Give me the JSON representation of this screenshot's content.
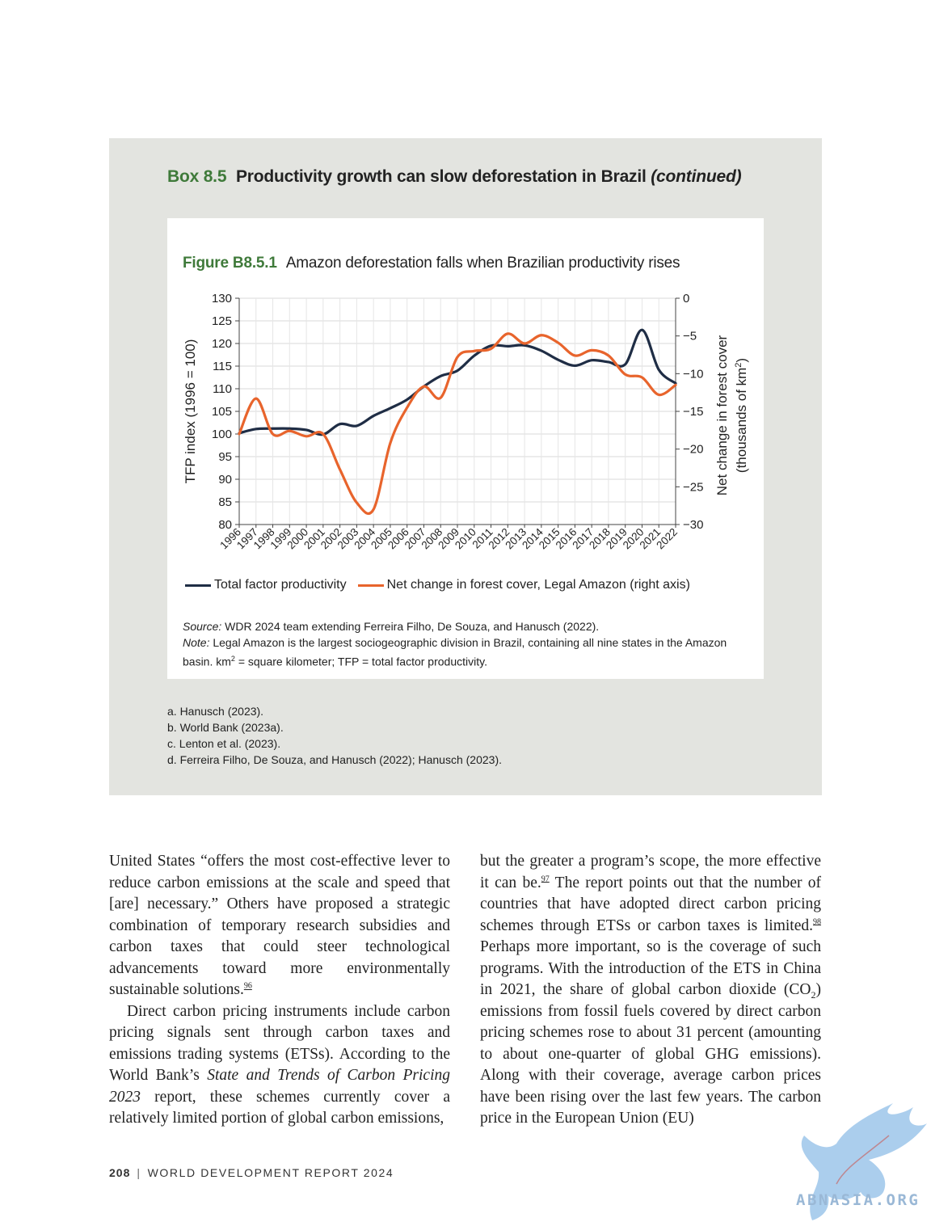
{
  "box": {
    "label": "Box 8.5",
    "title": "Productivity growth can slow deforestation in Brazil",
    "continued": "(continued)"
  },
  "figure": {
    "label": "Figure B8.5.1",
    "title": "Amazon deforestation falls when Brazilian productivity rises",
    "source_label": "Source:",
    "source_text": "WDR 2024 team extending Ferreira Filho, De Souza, and Hanusch (2022).",
    "note_label": "Note:",
    "note_text_a": "Legal Amazon is the largest sociogeographic division in Brazil, containing all nine states in the Amazon basin. km",
    "note_sup": "2",
    "note_text_b": " = square kilometer; TFP = total factor productivity."
  },
  "chart_data": {
    "type": "line",
    "x": [
      1996,
      1997,
      1998,
      1999,
      2000,
      2001,
      2002,
      2003,
      2004,
      2005,
      2006,
      2007,
      2008,
      2009,
      2010,
      2011,
      2012,
      2013,
      2014,
      2015,
      2016,
      2017,
      2018,
      2019,
      2020,
      2021,
      2022
    ],
    "xlabel": "",
    "ylabel": "TFP index (1996 = 100)",
    "ylabel_right": "Net change in forest cover",
    "ylabel_right_2": "(thousands of km",
    "ylabel_right_sup": "2",
    "ylabel_right_end": ")",
    "ylim": [
      80,
      130
    ],
    "yticks": [
      130,
      125,
      120,
      115,
      110,
      105,
      100,
      95,
      90,
      85,
      80
    ],
    "ylim_right": [
      -30,
      0
    ],
    "yticks_right": [
      "0",
      "−5",
      "−10",
      "−15",
      "−20",
      "−25",
      "−30"
    ],
    "yticks_right_values": [
      0,
      -5,
      -10,
      -15,
      -20,
      -25,
      -30
    ],
    "grid": true,
    "legend_position": "bottom",
    "series": [
      {
        "name": "Total factor productivity",
        "axis": "left",
        "color": "#1f2d45",
        "values": [
          100.2,
          101.1,
          101.2,
          101.2,
          100.9,
          99.9,
          102.2,
          101.8,
          104.0,
          105.7,
          107.6,
          110.5,
          112.8,
          114.0,
          117.3,
          119.5,
          119.4,
          119.6,
          118.4,
          116.4,
          115.1,
          116.3,
          115.9,
          115.4,
          123.0,
          114.2,
          111.2
        ]
      },
      {
        "name": "Net change in forest cover, Legal Amazon (right axis)",
        "axis": "right",
        "color": "#e8642c",
        "values": [
          -18.0,
          -13.3,
          -18.0,
          -17.6,
          -18.3,
          -18.0,
          -22.7,
          -27.1,
          -28.0,
          -19.2,
          -14.5,
          -11.7,
          -13.2,
          -7.8,
          -7.0,
          -6.7,
          -4.7,
          -6.0,
          -4.9,
          -5.9,
          -7.6,
          -6.9,
          -7.6,
          -10.1,
          -10.5,
          -12.8,
          -11.5
        ]
      }
    ]
  },
  "footnotes": [
    "a. Hanusch (2023).",
    "b. World Bank (2023a).",
    "c. Lenton et al. (2023).",
    "d. Ferreira Filho, De Souza, and Hanusch (2022); Hanusch (2023)."
  ],
  "body": {
    "left_p1": "United States “offers the most cost-effective lever to reduce carbon emissions at the scale and speed that [are] necessary.” Others have proposed a strategic combination of temporary research subsidies and carbon taxes that could steer technological advancements toward more environmentally sustainable solutions.",
    "left_p1_sup": "96",
    "left_p2_a": "Direct carbon pricing instruments include carbon pricing signals sent through carbon taxes and emissions trading systems (ETSs). According to the World Bank’s ",
    "left_p2_italic": "State and Trends of Carbon Pricing 2023",
    "left_p2_b": " report, these schemes currently cover a relatively limited portion of global carbon emissions,",
    "right_p1_a": "but the greater a program’s scope, the more effective it can be.",
    "right_sup_97": "97",
    "right_p1_b": " The report points out that the number of countries that have adopted direct carbon pricing schemes through ETSs or carbon taxes is limited.",
    "right_sup_98": "98",
    "right_p1_c": " Perhaps more important, so is the coverage of such programs. With the introduction of the ETS in China in 2021, the share of global carbon dioxide (CO",
    "right_sub": "2",
    "right_p1_d": ") emissions from fossil fuels covered by direct carbon pricing schemes rose to about 31 percent (amounting to about one-quarter of global GHG emissions). Along with their coverage, average carbon prices have been rising over the last few years. The carbon price in the European Union (EU)"
  },
  "footer": {
    "page": "208",
    "separator": "|",
    "title": "WORLD DEVELOPMENT REPORT 2024"
  },
  "watermark": {
    "text": "ABNASIA.ORG",
    "icon": "griffin-logo-icon",
    "color": "#9ab8d6"
  }
}
